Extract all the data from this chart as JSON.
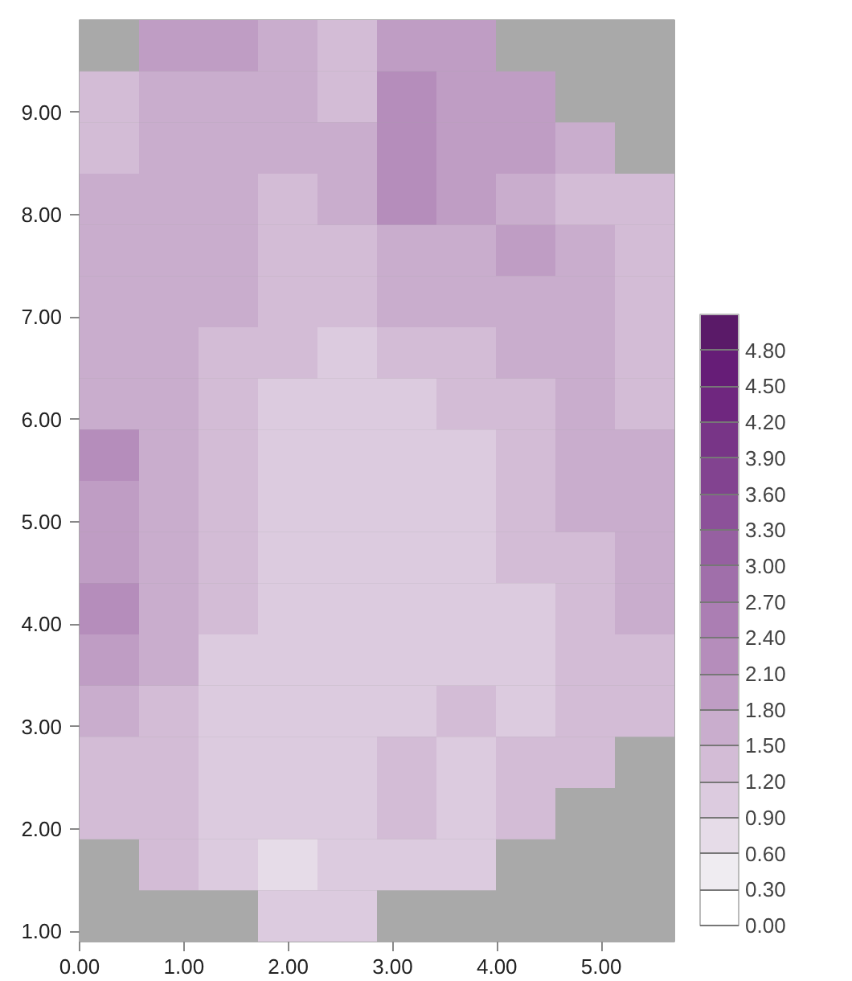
{
  "chart_data": {
    "type": "heatmap",
    "xlim": [
      0,
      5.7
    ],
    "ylim": [
      0.9,
      9.9
    ],
    "xticks": [
      {
        "value": 0,
        "label": "0.00"
      },
      {
        "value": 1,
        "label": "1.00"
      },
      {
        "value": 2,
        "label": "2.00"
      },
      {
        "value": 3,
        "label": "3.00"
      },
      {
        "value": 4,
        "label": "4.00"
      },
      {
        "value": 5,
        "label": "5.00"
      }
    ],
    "yticks": [
      {
        "value": 1,
        "label": "1.00"
      },
      {
        "value": 2,
        "label": "2.00"
      },
      {
        "value": 3,
        "label": "3.00"
      },
      {
        "value": 4,
        "label": "4.00"
      },
      {
        "value": 5,
        "label": "5.00"
      },
      {
        "value": 6,
        "label": "6.00"
      },
      {
        "value": 7,
        "label": "7.00"
      },
      {
        "value": 8,
        "label": "8.00"
      },
      {
        "value": 9,
        "label": "9.00"
      }
    ],
    "clim": [
      0,
      5.1
    ],
    "cticks": [
      {
        "value": 0,
        "label": "0.00"
      },
      {
        "value": 0.3,
        "label": "0.30"
      },
      {
        "value": 0.6,
        "label": "0.60"
      },
      {
        "value": 0.9,
        "label": "0.90"
      },
      {
        "value": 1.2,
        "label": "1.20"
      },
      {
        "value": 1.5,
        "label": "1.50"
      },
      {
        "value": 1.8,
        "label": "1.80"
      },
      {
        "value": 2.1,
        "label": "2.10"
      },
      {
        "value": 2.4,
        "label": "2.40"
      },
      {
        "value": 2.7,
        "label": "2.70"
      },
      {
        "value": 3.0,
        "label": "3.00"
      },
      {
        "value": 3.3,
        "label": "3.30"
      },
      {
        "value": 3.6,
        "label": "3.60"
      },
      {
        "value": 3.9,
        "label": "3.90"
      },
      {
        "value": 4.2,
        "label": "4.20"
      },
      {
        "value": 4.5,
        "label": "4.50"
      },
      {
        "value": 4.8,
        "label": "4.80"
      }
    ],
    "colors": [
      "#ffffff",
      "#efecf1",
      "#e6dce8",
      "#dccbdf",
      "#d3bcd6",
      "#c9adcd",
      "#bf9dc4",
      "#b58dbb",
      "#ab7eb3",
      "#a06faa",
      "#9660a1",
      "#8c5199",
      "#824390",
      "#783587",
      "#6f277f",
      "#661d77",
      "#5a1a68"
    ],
    "grid": false,
    "cells": [
      [
        null,
        1.95,
        1.95,
        1.65,
        1.35,
        1.95,
        1.95,
        null,
        null,
        null
      ],
      [
        1.35,
        1.65,
        1.65,
        1.65,
        1.35,
        2.25,
        1.95,
        1.95,
        null,
        null
      ],
      [
        1.35,
        1.65,
        1.65,
        1.65,
        1.65,
        2.25,
        1.95,
        1.95,
        1.65,
        null
      ],
      [
        1.65,
        1.65,
        1.65,
        1.35,
        1.65,
        2.25,
        1.95,
        1.65,
        1.35,
        1.35
      ],
      [
        1.65,
        1.65,
        1.65,
        1.35,
        1.35,
        1.65,
        1.65,
        1.95,
        1.65,
        1.35
      ],
      [
        1.65,
        1.65,
        1.65,
        1.35,
        1.35,
        1.65,
        1.65,
        1.65,
        1.65,
        1.35
      ],
      [
        1.65,
        1.65,
        1.35,
        1.35,
        1.05,
        1.35,
        1.35,
        1.65,
        1.65,
        1.35
      ],
      [
        1.65,
        1.65,
        1.35,
        1.05,
        1.05,
        1.05,
        1.35,
        1.35,
        1.65,
        1.35
      ],
      [
        2.25,
        1.65,
        1.35,
        1.05,
        1.05,
        1.05,
        1.05,
        1.35,
        1.65,
        1.65
      ],
      [
        1.95,
        1.65,
        1.35,
        1.05,
        1.05,
        1.05,
        1.05,
        1.35,
        1.65,
        1.65
      ],
      [
        1.95,
        1.65,
        1.35,
        1.05,
        1.05,
        1.05,
        1.05,
        1.35,
        1.35,
        1.65
      ],
      [
        2.25,
        1.65,
        1.35,
        1.05,
        1.05,
        1.05,
        1.05,
        1.05,
        1.35,
        1.65
      ],
      [
        1.95,
        1.65,
        1.05,
        1.05,
        1.05,
        1.05,
        1.05,
        1.05,
        1.35,
        1.35
      ],
      [
        1.65,
        1.35,
        1.05,
        1.05,
        1.05,
        1.05,
        1.35,
        1.05,
        1.35,
        1.35
      ],
      [
        1.35,
        1.35,
        1.05,
        1.05,
        1.05,
        1.35,
        1.05,
        1.35,
        1.35,
        null
      ],
      [
        1.35,
        1.35,
        1.05,
        1.05,
        1.05,
        1.35,
        1.05,
        1.35,
        null,
        null
      ],
      [
        null,
        1.35,
        1.05,
        0.75,
        1.05,
        1.05,
        1.05,
        null,
        null,
        null
      ],
      [
        null,
        null,
        null,
        1.05,
        1.05,
        null,
        null,
        null,
        null,
        null
      ]
    ]
  }
}
